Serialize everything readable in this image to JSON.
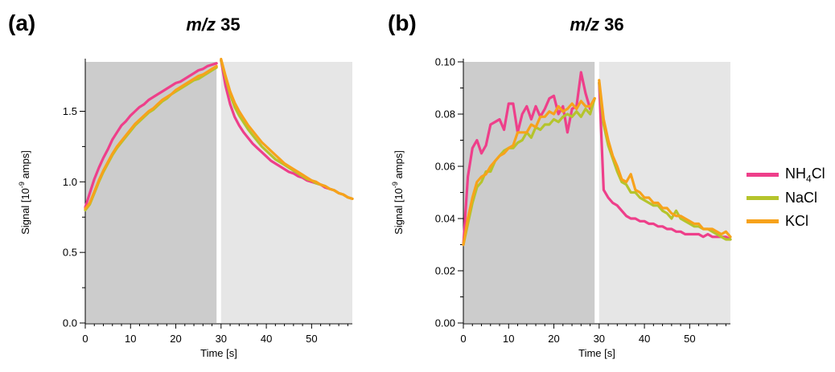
{
  "colors": {
    "NH4Cl": "#ee3f8a",
    "NaCl": "#b5c42c",
    "KCl": "#f7a21b",
    "region_dark": "#cccccc",
    "region_light": "#e6e6e6"
  },
  "legend": [
    {
      "key": "NH4Cl",
      "label_main": "NH",
      "label_sub": "4",
      "label_tail": "Cl"
    },
    {
      "key": "NaCl",
      "label_main": "NaCl",
      "label_sub": "",
      "label_tail": ""
    },
    {
      "key": "KCl",
      "label_main": "KCl",
      "label_sub": "",
      "label_tail": ""
    }
  ],
  "chart_data": [
    {
      "type": "line",
      "panel_label": "(a)",
      "title_italic": "m/z",
      "title_rest": " 35",
      "xlabel": "Time [s]",
      "ylabel_prefix": "Signal [10",
      "ylabel_sup": "-9",
      "ylabel_suffix": " amps]",
      "xlim": [
        0,
        59
      ],
      "ylim": [
        0,
        1.85
      ],
      "xticks": [
        0,
        10,
        20,
        30,
        40,
        50
      ],
      "yticks": [
        0.0,
        0.5,
        1.0,
        1.5
      ],
      "ytick_labels": [
        "0.0",
        "0.5",
        "1.0",
        "1.5"
      ],
      "shaded_regions": [
        {
          "from": 0,
          "to": 29,
          "shade": "dark"
        },
        {
          "from": 30,
          "to": 59,
          "shade": "light"
        }
      ],
      "series": [
        {
          "key": "NH4Cl",
          "name": "NH4Cl",
          "segments": [
            {
              "x": [
                0,
                1,
                2,
                3,
                4,
                5,
                6,
                7,
                8,
                9,
                10,
                11,
                12,
                13,
                14,
                15,
                16,
                17,
                18,
                19,
                20,
                21,
                22,
                23,
                24,
                25,
                26,
                27,
                28,
                29
              ],
              "y": [
                0.82,
                0.92,
                1.02,
                1.1,
                1.17,
                1.23,
                1.3,
                1.35,
                1.4,
                1.43,
                1.47,
                1.5,
                1.53,
                1.55,
                1.58,
                1.6,
                1.62,
                1.64,
                1.66,
                1.68,
                1.7,
                1.71,
                1.73,
                1.75,
                1.77,
                1.79,
                1.8,
                1.82,
                1.83,
                1.84
              ]
            },
            {
              "x": [
                30,
                31,
                32,
                33,
                34,
                35,
                36,
                37,
                38,
                39,
                40,
                41,
                42,
                43,
                44,
                45,
                46,
                47,
                48,
                49,
                50,
                51,
                52,
                53,
                54,
                55,
                56,
                57,
                58,
                59
              ],
              "y": [
                1.86,
                1.68,
                1.55,
                1.46,
                1.4,
                1.35,
                1.31,
                1.27,
                1.24,
                1.21,
                1.18,
                1.15,
                1.13,
                1.11,
                1.09,
                1.07,
                1.06,
                1.04,
                1.03,
                1.01,
                1.0,
                0.99,
                0.98,
                0.96,
                0.95,
                0.94,
                0.92,
                0.91,
                0.89,
                0.88
              ]
            }
          ]
        },
        {
          "key": "NaCl",
          "name": "NaCl",
          "segments": [
            {
              "x": [
                0,
                1,
                2,
                3,
                4,
                5,
                6,
                7,
                8,
                9,
                10,
                11,
                12,
                13,
                14,
                15,
                16,
                17,
                18,
                19,
                20,
                21,
                22,
                23,
                24,
                25,
                26,
                27,
                28,
                29
              ],
              "y": [
                0.8,
                0.84,
                0.92,
                1.0,
                1.07,
                1.13,
                1.19,
                1.24,
                1.28,
                1.32,
                1.36,
                1.4,
                1.43,
                1.46,
                1.49,
                1.51,
                1.54,
                1.57,
                1.59,
                1.62,
                1.64,
                1.66,
                1.68,
                1.7,
                1.72,
                1.73,
                1.75,
                1.77,
                1.79,
                1.81
              ]
            },
            {
              "x": [
                30,
                31,
                32,
                33,
                34,
                35,
                36,
                37,
                38,
                39,
                40,
                41,
                42,
                43,
                44,
                45,
                46,
                47,
                48,
                49,
                50,
                51,
                52,
                53,
                54,
                55,
                56,
                57,
                58,
                59
              ],
              "y": [
                1.86,
                1.74,
                1.62,
                1.53,
                1.47,
                1.42,
                1.37,
                1.33,
                1.29,
                1.25,
                1.22,
                1.19,
                1.16,
                1.14,
                1.12,
                1.1,
                1.08,
                1.06,
                1.04,
                1.02,
                1.01,
                0.99,
                0.98,
                0.97,
                0.95,
                0.94,
                0.92,
                0.91,
                0.89,
                0.88
              ]
            }
          ]
        },
        {
          "key": "KCl",
          "name": "KCl",
          "segments": [
            {
              "x": [
                0,
                1,
                2,
                3,
                4,
                5,
                6,
                7,
                8,
                9,
                10,
                11,
                12,
                13,
                14,
                15,
                16,
                17,
                18,
                19,
                20,
                21,
                22,
                23,
                24,
                25,
                26,
                27,
                28,
                29
              ],
              "y": [
                0.81,
                0.85,
                0.93,
                1.01,
                1.08,
                1.14,
                1.2,
                1.25,
                1.29,
                1.33,
                1.37,
                1.41,
                1.44,
                1.47,
                1.5,
                1.52,
                1.55,
                1.58,
                1.6,
                1.62,
                1.65,
                1.67,
                1.69,
                1.71,
                1.73,
                1.75,
                1.76,
                1.78,
                1.8,
                1.82
              ]
            },
            {
              "x": [
                30,
                31,
                32,
                33,
                34,
                35,
                36,
                37,
                38,
                39,
                40,
                41,
                42,
                43,
                44,
                45,
                46,
                47,
                48,
                49,
                50,
                51,
                52,
                53,
                54,
                55,
                56,
                57,
                58,
                59
              ],
              "y": [
                1.87,
                1.75,
                1.64,
                1.56,
                1.5,
                1.45,
                1.4,
                1.36,
                1.32,
                1.28,
                1.25,
                1.22,
                1.19,
                1.16,
                1.13,
                1.11,
                1.09,
                1.07,
                1.05,
                1.03,
                1.01,
                1.0,
                0.98,
                0.97,
                0.95,
                0.94,
                0.92,
                0.91,
                0.89,
                0.88
              ]
            }
          ]
        }
      ]
    },
    {
      "type": "line",
      "panel_label": "(b)",
      "title_italic": "m/z",
      "title_rest": " 36",
      "xlabel": "Time [s]",
      "ylabel_prefix": "Signal [10",
      "ylabel_sup": "-9",
      "ylabel_suffix": " amps]",
      "xlim": [
        0,
        59
      ],
      "ylim": [
        0,
        0.1
      ],
      "xticks": [
        0,
        10,
        20,
        30,
        40,
        50
      ],
      "yticks": [
        0.0,
        0.02,
        0.04,
        0.06,
        0.08,
        0.1
      ],
      "ytick_labels": [
        "0.00",
        "0.02",
        "0.04",
        "0.06",
        "0.08",
        "0.10"
      ],
      "shaded_regions": [
        {
          "from": 0,
          "to": 29,
          "shade": "dark"
        },
        {
          "from": 30,
          "to": 59,
          "shade": "light"
        }
      ],
      "series": [
        {
          "key": "NH4Cl",
          "name": "NH4Cl",
          "segments": [
            {
              "x": [
                0,
                1,
                2,
                3,
                4,
                5,
                6,
                7,
                8,
                9,
                10,
                11,
                12,
                13,
                14,
                15,
                16,
                17,
                18,
                19,
                20,
                21,
                22,
                23,
                24,
                25,
                26,
                27,
                28,
                29
              ],
              "y": [
                0.03,
                0.056,
                0.067,
                0.07,
                0.065,
                0.068,
                0.076,
                0.077,
                0.078,
                0.074,
                0.084,
                0.084,
                0.073,
                0.08,
                0.083,
                0.078,
                0.083,
                0.079,
                0.082,
                0.086,
                0.087,
                0.08,
                0.083,
                0.073,
                0.082,
                0.083,
                0.096,
                0.088,
                0.082,
                0.086
              ]
            },
            {
              "x": [
                30,
                31,
                32,
                33,
                34,
                35,
                36,
                37,
                38,
                39,
                40,
                41,
                42,
                43,
                44,
                45,
                46,
                47,
                48,
                49,
                50,
                51,
                52,
                53,
                54,
                55,
                56,
                57,
                58,
                59
              ],
              "y": [
                0.092,
                0.051,
                0.048,
                0.046,
                0.045,
                0.043,
                0.041,
                0.04,
                0.04,
                0.039,
                0.039,
                0.038,
                0.038,
                0.037,
                0.037,
                0.036,
                0.036,
                0.035,
                0.035,
                0.034,
                0.034,
                0.034,
                0.034,
                0.033,
                0.034,
                0.033,
                0.033,
                0.033,
                0.033,
                0.032
              ]
            }
          ]
        },
        {
          "key": "NaCl",
          "name": "NaCl",
          "segments": [
            {
              "x": [
                0,
                1,
                2,
                3,
                4,
                5,
                6,
                7,
                8,
                9,
                10,
                11,
                12,
                13,
                14,
                15,
                16,
                17,
                18,
                19,
                20,
                21,
                22,
                23,
                24,
                25,
                26,
                27,
                28,
                29
              ],
              "y": [
                0.03,
                0.038,
                0.046,
                0.052,
                0.054,
                0.058,
                0.058,
                0.062,
                0.064,
                0.066,
                0.067,
                0.067,
                0.069,
                0.07,
                0.073,
                0.071,
                0.075,
                0.074,
                0.076,
                0.076,
                0.078,
                0.077,
                0.079,
                0.08,
                0.079,
                0.081,
                0.079,
                0.082,
                0.08,
                0.086
              ]
            },
            {
              "x": [
                30,
                31,
                32,
                33,
                34,
                35,
                36,
                37,
                38,
                39,
                40,
                41,
                42,
                43,
                44,
                45,
                46,
                47,
                48,
                49,
                50,
                51,
                52,
                53,
                54,
                55,
                56,
                57,
                58,
                59
              ],
              "y": [
                0.092,
                0.076,
                0.068,
                0.063,
                0.058,
                0.054,
                0.053,
                0.05,
                0.05,
                0.048,
                0.047,
                0.046,
                0.045,
                0.045,
                0.043,
                0.042,
                0.04,
                0.043,
                0.04,
                0.039,
                0.038,
                0.037,
                0.037,
                0.036,
                0.036,
                0.035,
                0.034,
                0.033,
                0.032,
                0.032
              ]
            }
          ]
        },
        {
          "key": "KCl",
          "name": "KCl",
          "segments": [
            {
              "x": [
                0,
                1,
                2,
                3,
                4,
                5,
                6,
                7,
                8,
                9,
                10,
                11,
                12,
                13,
                14,
                15,
                16,
                17,
                18,
                19,
                20,
                21,
                22,
                23,
                24,
                25,
                26,
                27,
                28,
                29
              ],
              "y": [
                0.03,
                0.04,
                0.048,
                0.054,
                0.056,
                0.057,
                0.06,
                0.062,
                0.064,
                0.065,
                0.067,
                0.068,
                0.073,
                0.073,
                0.073,
                0.076,
                0.075,
                0.079,
                0.079,
                0.081,
                0.08,
                0.083,
                0.081,
                0.082,
                0.084,
                0.082,
                0.085,
                0.083,
                0.083,
                0.086
              ]
            },
            {
              "x": [
                30,
                31,
                32,
                33,
                34,
                35,
                36,
                37,
                38,
                39,
                40,
                41,
                42,
                43,
                44,
                45,
                46,
                47,
                48,
                49,
                50,
                51,
                52,
                53,
                54,
                55,
                56,
                57,
                58,
                59
              ],
              "y": [
                0.093,
                0.078,
                0.07,
                0.064,
                0.06,
                0.055,
                0.054,
                0.057,
                0.051,
                0.05,
                0.048,
                0.048,
                0.046,
                0.046,
                0.044,
                0.044,
                0.042,
                0.041,
                0.041,
                0.04,
                0.039,
                0.038,
                0.038,
                0.036,
                0.036,
                0.036,
                0.035,
                0.034,
                0.035,
                0.033
              ]
            }
          ]
        }
      ]
    }
  ]
}
